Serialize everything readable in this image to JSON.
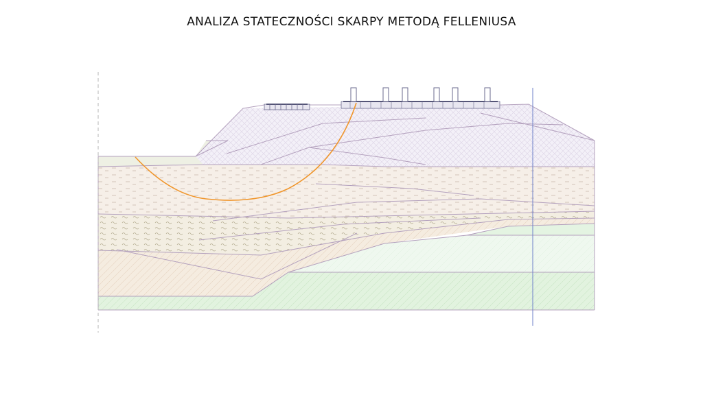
{
  "title": "ANALIZA STATECZNOŚCI SKARPY METODĄ FELLENIUSA",
  "colors": {
    "boundary": "#b3a0bd",
    "slip_surface": "#f0962c",
    "axis_line": "#6c7fc9",
    "frame_dash": "#b5b5b5",
    "embankment_fill": "#f2eff7",
    "gravel_fill": "#f7efe9",
    "silty_fill": "#f4efe4",
    "sand_fill": "#f4ece0",
    "deep_green_fill": "#e0f3dd",
    "light_green_fill": "#eef8ee",
    "block_outline": "#6a6a8e"
  },
  "icons": {
    "slip_surface": "orange-slip-circle-arc",
    "loads": "rail-sleeper-blocks"
  }
}
